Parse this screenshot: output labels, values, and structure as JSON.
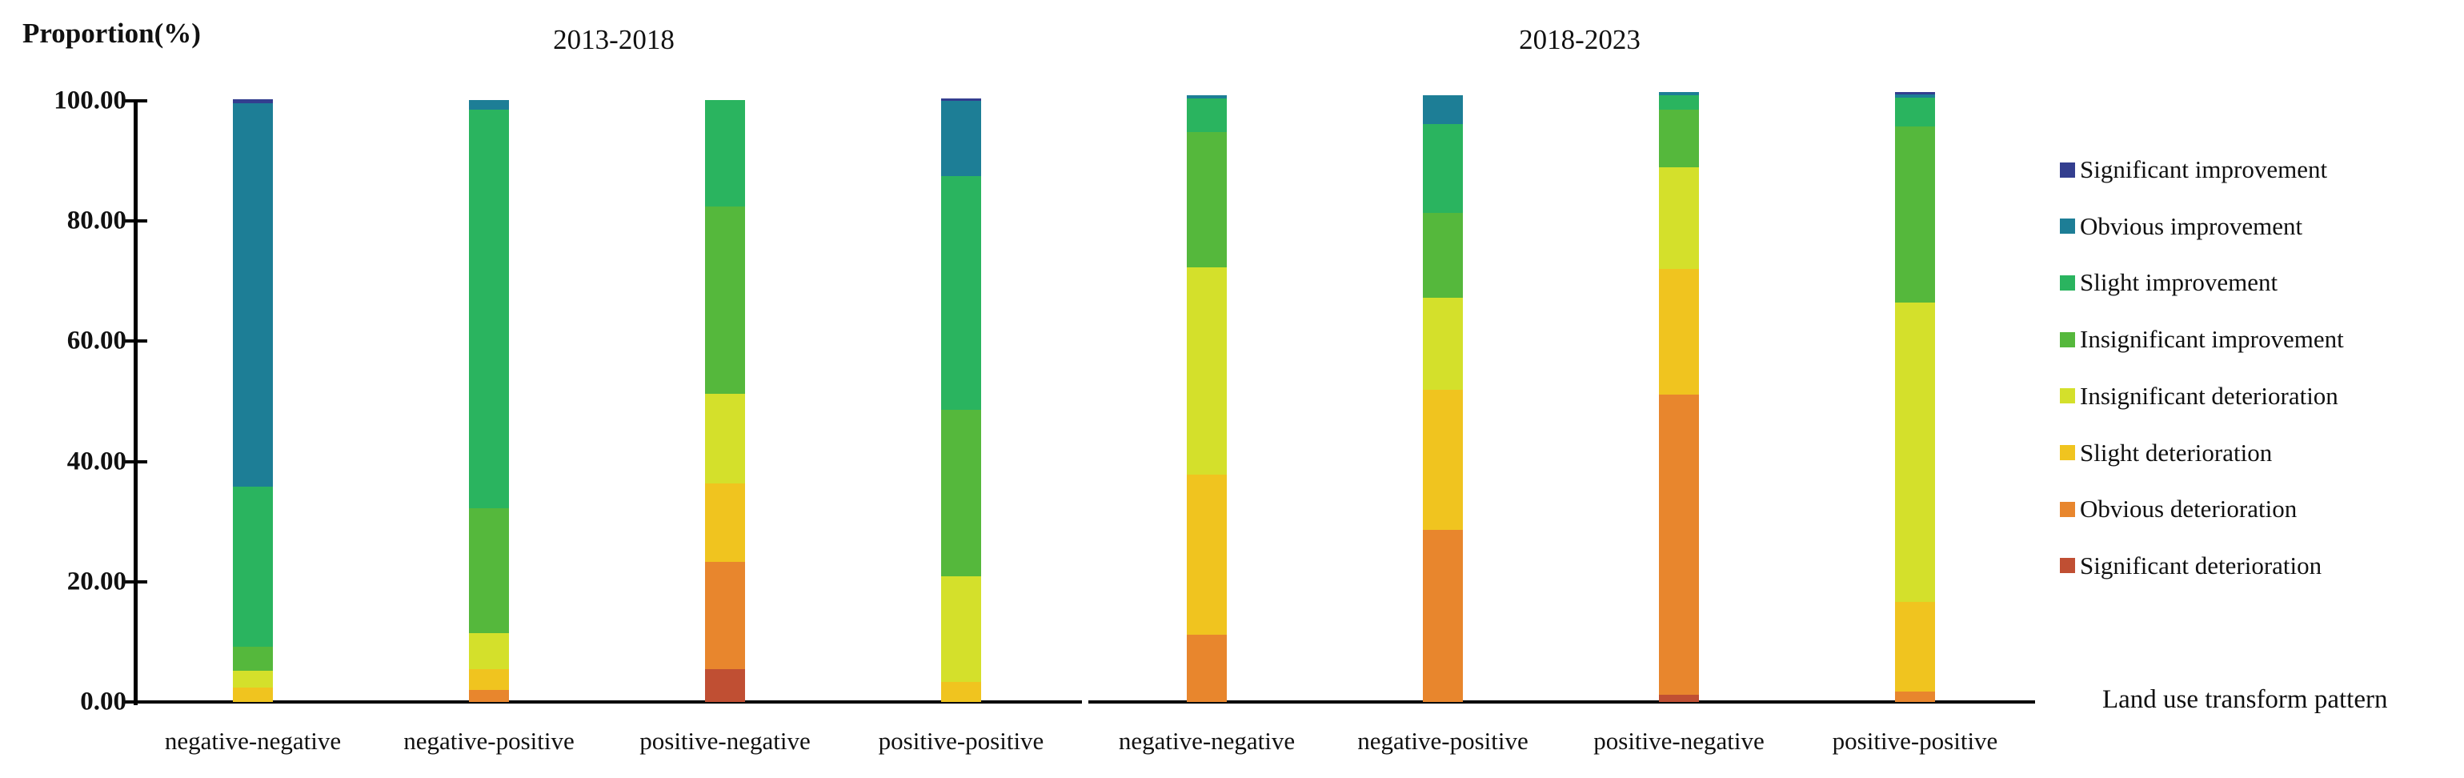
{
  "chart_data": {
    "type": "bar",
    "subtype": "stacked-percentage-columns",
    "ylabel": "Proportion(%)",
    "xlabel": "Land use transform pattern",
    "ylim": [
      0,
      100
    ],
    "yticks": [
      "100.00",
      "80.00",
      "60.00",
      "40.00",
      "20.00",
      "0.00"
    ],
    "grid": "off",
    "legend_position": "right",
    "groups": [
      {
        "title": "2013-2018",
        "categories": [
          "negative-negative",
          "negative-positive",
          "positive-negative",
          "positive-positive"
        ]
      },
      {
        "title": "2018-2023",
        "categories": [
          "negative-negative",
          "negative-positive",
          "positive-negative",
          "positive-positive"
        ]
      }
    ],
    "bar_order_note": "values arrays hold 8 bars: 2013-2018 group (4 bars) then 2018-2023 group (4 bars); series are stacked with first legend entry at the top of each column",
    "series": [
      {
        "name": "Significant improvement",
        "color": "#333e8f",
        "values": [
          0.7,
          0,
          0,
          0.4,
          0,
          0,
          0,
          0.4
        ]
      },
      {
        "name": "Obvious improvement",
        "color": "#1d7e96",
        "values": [
          63.8,
          1.5,
          0,
          12.5,
          0.5,
          4.7,
          0.5,
          0.5
        ]
      },
      {
        "name": "Slight improvement",
        "color": "#2ab45f",
        "values": [
          26.6,
          66.4,
          17.8,
          38.9,
          5.6,
          14.9,
          2.4,
          4.7
        ]
      },
      {
        "name": "Insignificant improvement",
        "color": "#55b83c",
        "values": [
          4.0,
          20.8,
          31.2,
          27.7,
          22.5,
          14.1,
          9.5,
          29.4
        ]
      },
      {
        "name": "Insignificant deterioration",
        "color": "#d4e02b",
        "values": [
          2.8,
          5.9,
          14.9,
          17.6,
          34.5,
          15.3,
          16.9,
          49.8
        ]
      },
      {
        "name": "Slight deterioration",
        "color": "#f0c41f",
        "values": [
          2.4,
          3.5,
          13.0,
          3.3,
          26.6,
          23.3,
          21.0,
          14.9
        ]
      },
      {
        "name": "Obvious deterioration",
        "color": "#e8862d",
        "values": [
          0,
          2.0,
          17.8,
          0,
          11.2,
          28.6,
          49.9,
          1.7
        ]
      },
      {
        "name": "Significant deterioration",
        "color": "#c04f33",
        "values": [
          0,
          0,
          5.5,
          0,
          0,
          0,
          1.2,
          0
        ]
      }
    ]
  }
}
